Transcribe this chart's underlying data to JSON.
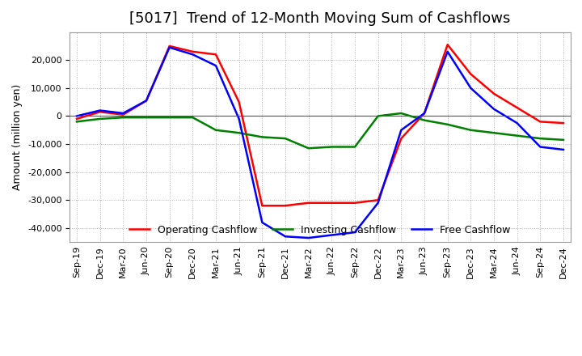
{
  "title": "[5017]  Trend of 12-Month Moving Sum of Cashflows",
  "ylabel": "Amount (million yen)",
  "background_color": "#ffffff",
  "grid_color": "#b0b0b0",
  "ylim": [
    -45000,
    30000
  ],
  "yticks": [
    -40000,
    -30000,
    -20000,
    -10000,
    0,
    10000,
    20000
  ],
  "x_labels": [
    "Sep-19",
    "Dec-19",
    "Mar-20",
    "Jun-20",
    "Sep-20",
    "Dec-20",
    "Mar-21",
    "Jun-21",
    "Sep-21",
    "Dec-21",
    "Mar-22",
    "Jun-22",
    "Sep-22",
    "Dec-22",
    "Mar-23",
    "Jun-23",
    "Sep-23",
    "Dec-23",
    "Mar-24",
    "Jun-24",
    "Sep-24",
    "Dec-24"
  ],
  "operating": [
    -1000,
    1500,
    500,
    5500,
    25000,
    23000,
    22000,
    5000,
    -32000,
    -32000,
    -31000,
    -31000,
    -31000,
    -30000,
    -8000,
    1000,
    25500,
    15000,
    8000,
    3000,
    -2000,
    -2500
  ],
  "investing": [
    -2000,
    -1000,
    -500,
    -500,
    -500,
    -500,
    -5000,
    -6000,
    -7500,
    -8000,
    -11500,
    -11000,
    -11000,
    0,
    1000,
    -1500,
    -3000,
    -5000,
    -6000,
    -7000,
    -8000,
    -8500
  ],
  "free": [
    0,
    2000,
    1000,
    5500,
    24500,
    22000,
    18000,
    -1000,
    -38000,
    -43000,
    -43500,
    -42500,
    -41500,
    -31000,
    -5000,
    1000,
    23000,
    10000,
    2500,
    -2500,
    -11000,
    -12000
  ],
  "operating_color": "#ff0000",
  "investing_color": "#008000",
  "free_color": "#0000ff",
  "line_width": 1.8,
  "title_fontsize": 13,
  "legend_fontsize": 9,
  "tick_fontsize": 8,
  "ylabel_fontsize": 9
}
